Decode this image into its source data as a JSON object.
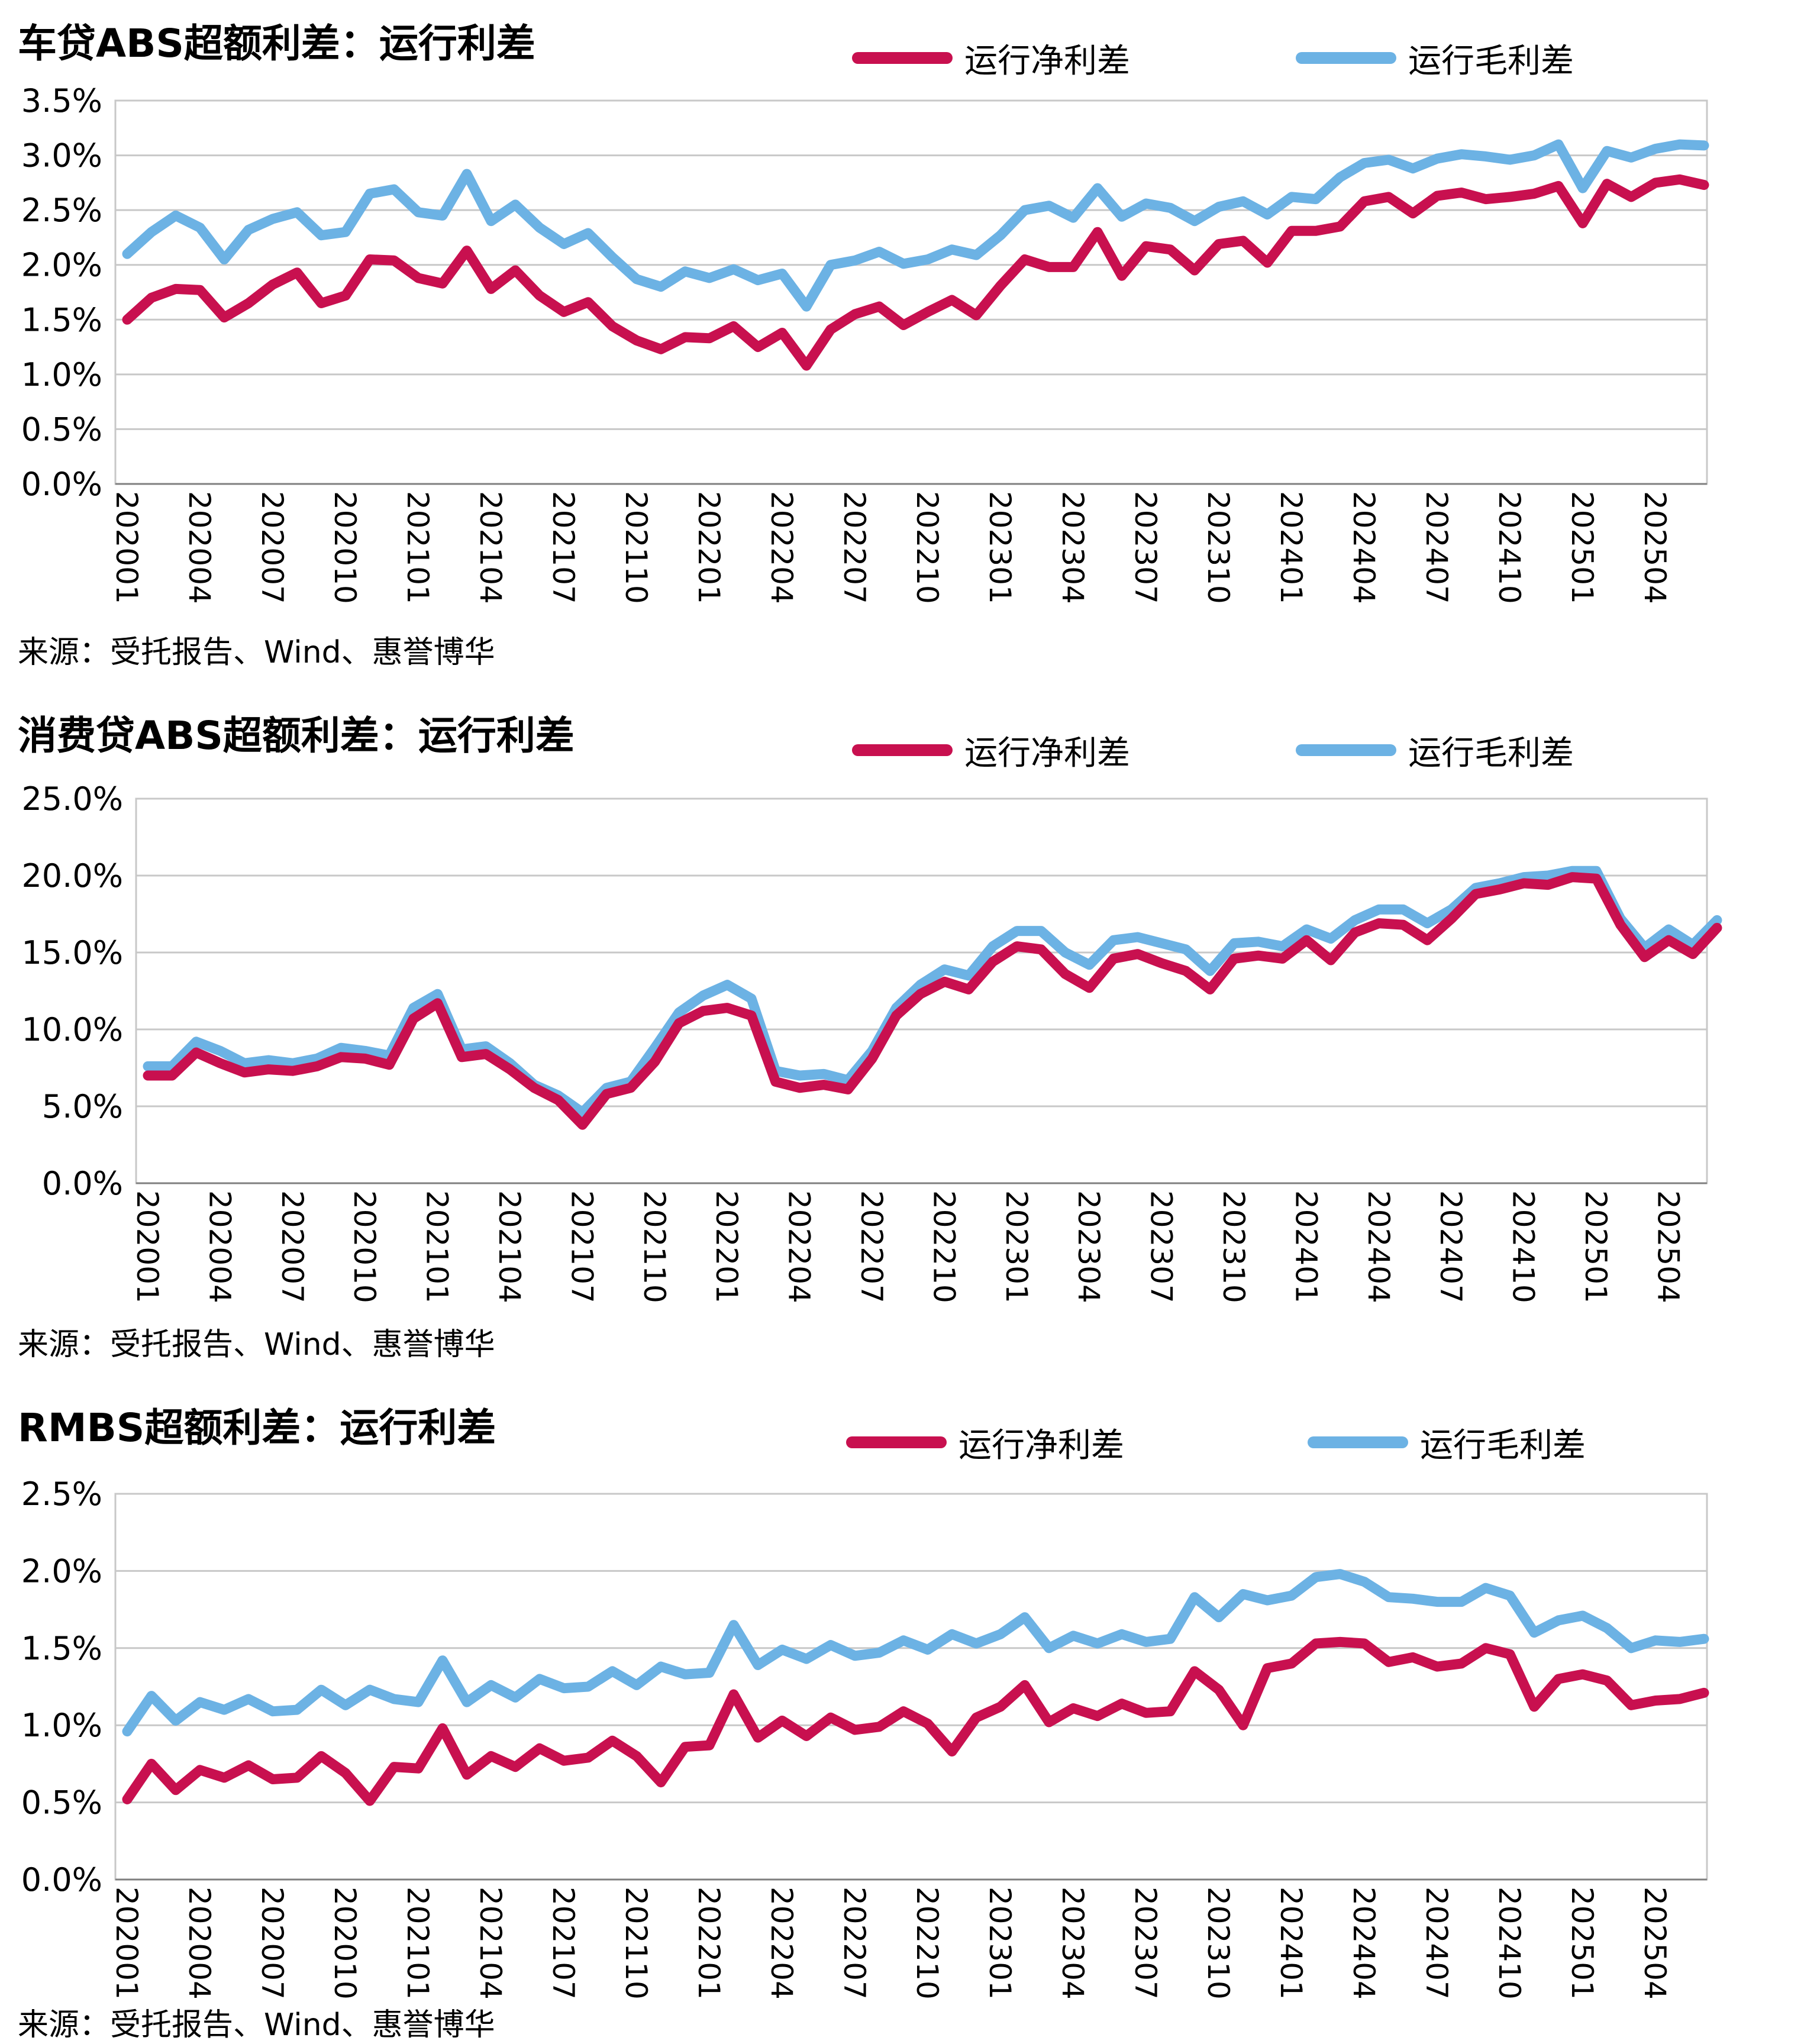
{
  "colors": {
    "net": "#c8104f",
    "gross": "#6cb2e4",
    "grid": "#c8c8c8",
    "axis": "#7f7f7f"
  },
  "chart_data": [
    {
      "type": "line",
      "title": "车贷ABS超额利差：运行利差",
      "source": "来源：受托报告、Wind、惠誉博华",
      "y_unit": "%",
      "ylim": [
        0,
        3.5
      ],
      "yticks": [
        "0.0%",
        "0.5%",
        "1.0%",
        "1.5%",
        "2.0%",
        "2.5%",
        "3.0%",
        "3.5%"
      ],
      "x_tick_labels": [
        "202001",
        "202004",
        "202007",
        "202010",
        "202101",
        "202104",
        "202107",
        "202110",
        "202201",
        "202204",
        "202207",
        "202210",
        "202301",
        "202304",
        "202307",
        "202310",
        "202401",
        "202404",
        "202407",
        "202410",
        "202501",
        "202504"
      ],
      "x_start": "2020-01",
      "grid": true,
      "legend_position": "top",
      "series": [
        {
          "name": "运行净利差",
          "values": [
            1.5,
            1.7,
            1.78,
            1.77,
            1.52,
            1.65,
            1.82,
            1.93,
            1.65,
            1.72,
            2.05,
            2.04,
            1.88,
            1.83,
            2.13,
            1.78,
            1.95,
            1.72,
            1.57,
            1.66,
            1.44,
            1.31,
            1.23,
            1.34,
            1.33,
            1.44,
            1.25,
            1.38,
            1.08,
            1.41,
            1.55,
            1.62,
            1.45,
            1.57,
            1.68,
            1.54,
            1.81,
            2.05,
            1.98,
            1.98,
            2.3,
            1.9,
            2.17,
            2.14,
            1.95,
            2.19,
            2.22,
            2.02,
            2.31,
            2.31,
            2.35,
            2.58,
            2.62,
            2.47,
            2.63,
            2.66,
            2.6,
            2.62,
            2.65,
            2.72,
            2.38,
            2.74,
            2.62,
            2.75,
            2.78,
            2.73
          ]
        },
        {
          "name": "运行毛利差",
          "values": [
            2.1,
            2.3,
            2.45,
            2.34,
            2.05,
            2.32,
            2.42,
            2.48,
            2.27,
            2.3,
            2.65,
            2.69,
            2.48,
            2.45,
            2.83,
            2.4,
            2.55,
            2.34,
            2.19,
            2.29,
            2.07,
            1.87,
            1.8,
            1.94,
            1.88,
            1.96,
            1.86,
            1.92,
            1.62,
            2.0,
            2.04,
            2.12,
            2.01,
            2.05,
            2.14,
            2.09,
            2.27,
            2.5,
            2.54,
            2.43,
            2.7,
            2.44,
            2.56,
            2.52,
            2.4,
            2.53,
            2.58,
            2.46,
            2.62,
            2.6,
            2.8,
            2.93,
            2.96,
            2.88,
            2.97,
            3.01,
            2.99,
            2.96,
            3.0,
            3.1,
            2.7,
            3.04,
            2.98,
            3.06,
            3.1,
            3.09
          ]
        }
      ]
    },
    {
      "type": "line",
      "title": "消费贷ABS超额利差：运行利差",
      "source": "来源：受托报告、Wind、惠誉博华",
      "y_unit": "%",
      "ylim": [
        0,
        25
      ],
      "yticks": [
        "0.0%",
        "5.0%",
        "10.0%",
        "15.0%",
        "20.0%",
        "25.0%"
      ],
      "x_tick_labels": [
        "202001",
        "202004",
        "202007",
        "202010",
        "202101",
        "202104",
        "202107",
        "202110",
        "202201",
        "202204",
        "202207",
        "202210",
        "202301",
        "202304",
        "202307",
        "202310",
        "202401",
        "202404",
        "202407",
        "202410",
        "202501",
        "202504"
      ],
      "x_start": "2020-01",
      "grid": true,
      "legend_position": "top",
      "series": [
        {
          "name": "运行净利差",
          "values": [
            7.0,
            7.0,
            8.5,
            7.8,
            7.2,
            7.4,
            7.3,
            7.6,
            8.2,
            8.1,
            7.7,
            10.7,
            11.7,
            8.2,
            8.4,
            7.4,
            6.2,
            5.4,
            3.8,
            5.8,
            6.2,
            7.9,
            10.4,
            11.2,
            11.4,
            10.9,
            6.6,
            6.2,
            6.4,
            6.1,
            8.1,
            10.9,
            12.3,
            13.1,
            12.6,
            14.4,
            15.4,
            15.2,
            13.6,
            12.7,
            14.6,
            14.9,
            14.3,
            13.8,
            12.6,
            14.6,
            14.8,
            14.6,
            15.8,
            14.5,
            16.3,
            16.9,
            16.8,
            15.8,
            17.2,
            18.8,
            19.1,
            19.5,
            19.4,
            19.9,
            19.8,
            16.8,
            14.7,
            15.8,
            14.9,
            16.6
          ]
        },
        {
          "name": "运行毛利差",
          "values": [
            7.6,
            7.6,
            9.2,
            8.6,
            7.8,
            8.0,
            7.8,
            8.1,
            8.8,
            8.6,
            8.3,
            11.4,
            12.3,
            8.7,
            8.9,
            7.8,
            6.4,
            5.7,
            4.6,
            6.2,
            6.6,
            8.8,
            11.1,
            12.2,
            12.9,
            12.0,
            7.3,
            7.0,
            7.1,
            6.7,
            8.6,
            11.4,
            12.9,
            13.9,
            13.5,
            15.4,
            16.4,
            16.4,
            15.0,
            14.2,
            15.8,
            16.0,
            15.6,
            15.2,
            13.8,
            15.6,
            15.7,
            15.4,
            16.5,
            15.9,
            17.1,
            17.8,
            17.8,
            16.9,
            17.8,
            19.2,
            19.5,
            19.9,
            20.0,
            20.3,
            20.3,
            17.2,
            15.3,
            16.5,
            15.5,
            17.1
          ]
        }
      ]
    },
    {
      "type": "line",
      "title": "RMBS超额利差：运行利差",
      "source": "来源：受托报告、Wind、惠誉博华",
      "y_unit": "%",
      "ylim": [
        0,
        2.5
      ],
      "yticks": [
        "0.0%",
        "0.5%",
        "1.0%",
        "1.5%",
        "2.0%",
        "2.5%"
      ],
      "x_tick_labels": [
        "202001",
        "202004",
        "202007",
        "202010",
        "202101",
        "202104",
        "202107",
        "202110",
        "202201",
        "202204",
        "202207",
        "202210",
        "202301",
        "202304",
        "202307",
        "202310",
        "202401",
        "202404",
        "202407",
        "202410",
        "202501",
        "202504"
      ],
      "x_start": "2020-01",
      "grid": true,
      "legend_position": "top",
      "series": [
        {
          "name": "运行净利差",
          "values": [
            0.52,
            0.75,
            0.58,
            0.71,
            0.66,
            0.74,
            0.65,
            0.66,
            0.8,
            0.69,
            0.51,
            0.73,
            0.72,
            0.98,
            0.68,
            0.8,
            0.73,
            0.85,
            0.77,
            0.79,
            0.9,
            0.8,
            0.63,
            0.86,
            0.87,
            1.2,
            0.92,
            1.03,
            0.93,
            1.05,
            0.97,
            0.99,
            1.09,
            1.01,
            0.83,
            1.05,
            1.12,
            1.26,
            1.02,
            1.11,
            1.06,
            1.14,
            1.08,
            1.09,
            1.35,
            1.23,
            1.0,
            1.37,
            1.4,
            1.53,
            1.54,
            1.53,
            1.41,
            1.44,
            1.38,
            1.4,
            1.5,
            1.46,
            1.12,
            1.3,
            1.33,
            1.29,
            1.13,
            1.16,
            1.17,
            1.21
          ]
        },
        {
          "name": "运行毛利差",
          "values": [
            0.96,
            1.19,
            1.03,
            1.15,
            1.1,
            1.17,
            1.09,
            1.1,
            1.23,
            1.13,
            1.23,
            1.17,
            1.15,
            1.42,
            1.15,
            1.26,
            1.18,
            1.3,
            1.24,
            1.25,
            1.35,
            1.26,
            1.38,
            1.33,
            1.34,
            1.65,
            1.39,
            1.49,
            1.43,
            1.52,
            1.45,
            1.47,
            1.55,
            1.49,
            1.59,
            1.53,
            1.59,
            1.7,
            1.5,
            1.58,
            1.53,
            1.59,
            1.54,
            1.56,
            1.83,
            1.7,
            1.85,
            1.81,
            1.84,
            1.96,
            1.98,
            1.93,
            1.83,
            1.82,
            1.8,
            1.8,
            1.89,
            1.84,
            1.6,
            1.68,
            1.71,
            1.63,
            1.5,
            1.55,
            1.54,
            1.56
          ]
        }
      ]
    }
  ]
}
